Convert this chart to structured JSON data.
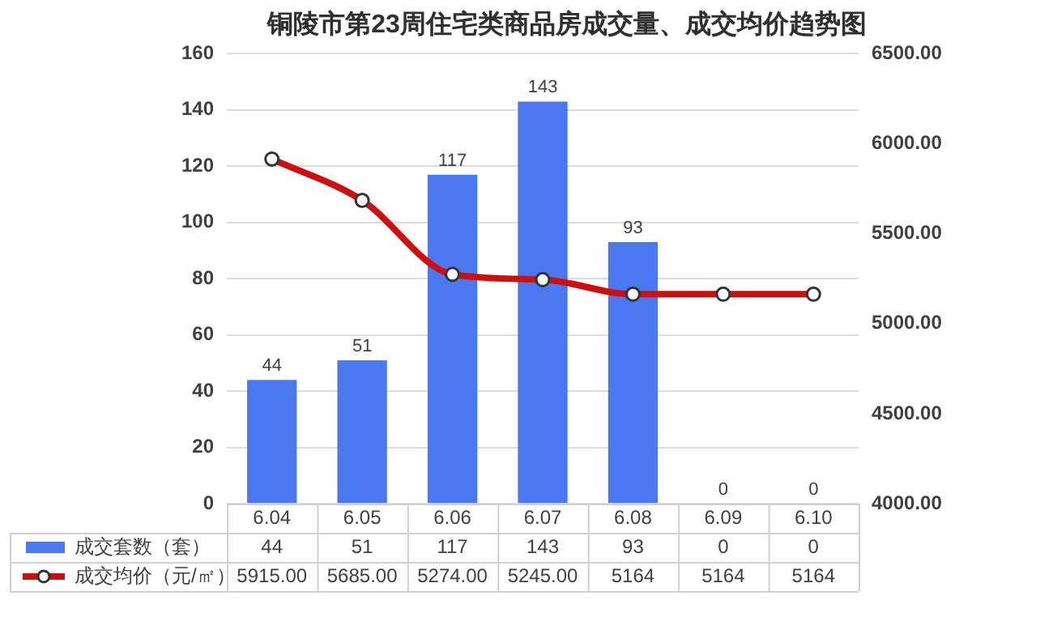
{
  "chart_data": {
    "type": "bar",
    "title": "铜陵市第23周住宅类商品房成交量、成交均价趋势图",
    "categories": [
      "6.04",
      "6.05",
      "6.06",
      "6.07",
      "6.08",
      "6.09",
      "6.10"
    ],
    "series": [
      {
        "name": "成交套数（套）",
        "color": "#4a78f0",
        "values": [
          44,
          51,
          117,
          143,
          93,
          0,
          0
        ],
        "value_labels": [
          "44",
          "51",
          "117",
          "143",
          "93",
          "0",
          "0"
        ]
      },
      {
        "name": "成交均价（元/㎡）",
        "type": "line",
        "axis": "y2",
        "color": "#cc1010",
        "values": [
          5915,
          5685,
          5274,
          5245,
          5164,
          5164,
          5164
        ],
        "value_labels": [
          "5915.00",
          "5685.00",
          "5274.00",
          "5245.00",
          "5164",
          "5164",
          "5164"
        ]
      }
    ],
    "ylim": [
      0,
      160
    ],
    "yticks": [
      0,
      20,
      40,
      60,
      80,
      100,
      120,
      140,
      160
    ],
    "y2lim": [
      4000,
      6500
    ],
    "y2ticks": [
      {
        "value": 4000,
        "label": "4000.00"
      },
      {
        "value": 4500,
        "label": "4500.00"
      },
      {
        "value": 5000,
        "label": "5000.00"
      },
      {
        "value": 5500,
        "label": "5500.00"
      },
      {
        "value": 6000,
        "label": "6000.00"
      },
      {
        "value": 6500,
        "label": "6500.00"
      }
    ],
    "grid": "y",
    "legend": "bottom",
    "marker": "circle",
    "line_style": "solid",
    "data_labels": true
  }
}
